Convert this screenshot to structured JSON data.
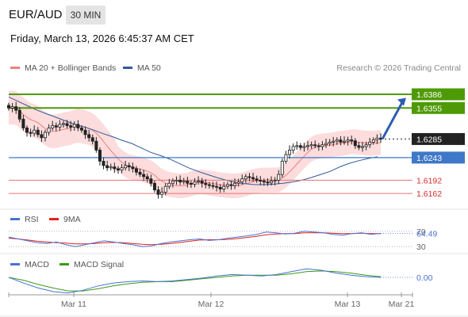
{
  "header": {
    "pair": "EUR/AUD",
    "timeframe": "30 MIN",
    "datetime": "Friday, March 13, 2026 6:45:37 AM CET"
  },
  "legend": {
    "ma20": "MA 20 + Bollinger Bands",
    "ma50": "MA 50",
    "rsi": "RSI",
    "rsi_ma": "9MA",
    "macd": "MACD",
    "macd_signal": "MACD Signal"
  },
  "credit": "Research © 2026 Trading Central",
  "colors": {
    "ma20": "#f08080",
    "ma50": "#2e5a9c",
    "bollinger_fill": "#fbd6d6",
    "target_line": "#4e9a06",
    "current_price": "#222222",
    "support_blue": "#3f78c8",
    "support_red": "#e57373",
    "rsi": "#4a72d1",
    "rsi_ma": "#e32020",
    "macd": "#4a72d1",
    "macd_signal": "#3a9a1a"
  },
  "chart_data": [
    {
      "type": "candlestick",
      "title": "",
      "x_labels": [
        "Mar 11",
        "Mar 12",
        "Mar 13",
        "Mar 21"
      ],
      "levels": [
        {
          "label": "1.6386",
          "value": 1.6386,
          "kind": "target"
        },
        {
          "label": "1.6355",
          "value": 1.6355,
          "kind": "target"
        },
        {
          "label": "1.6285",
          "value": 1.6285,
          "kind": "current"
        },
        {
          "label": "1.6243",
          "value": 1.6243,
          "kind": "support"
        },
        {
          "label": "1.6192",
          "value": 1.6192,
          "kind": "support-red"
        },
        {
          "label": "1.6162",
          "value": 1.6162,
          "kind": "support-red"
        }
      ],
      "ylim": [
        1.613,
        1.642
      ],
      "close": [
        1.6355,
        1.6358,
        1.635,
        1.633,
        1.631,
        1.63,
        1.6298,
        1.6305,
        1.6295,
        1.6288,
        1.63,
        1.631,
        1.6315,
        1.6312,
        1.6318,
        1.632,
        1.6315,
        1.6312,
        1.6318,
        1.631,
        1.6305,
        1.6295,
        1.6288,
        1.628,
        1.626,
        1.6235,
        1.6225,
        1.622,
        1.6222,
        1.6218,
        1.6215,
        1.622,
        1.6225,
        1.6222,
        1.6218,
        1.621,
        1.6205,
        1.62,
        1.6195,
        1.6185,
        1.617,
        1.616,
        1.6165,
        1.6178,
        1.6185,
        1.619,
        1.6192,
        1.6188,
        1.619,
        1.6185,
        1.6183,
        1.6188,
        1.619,
        1.6185,
        1.6182,
        1.618,
        1.6178,
        1.6176,
        1.6172,
        1.6178,
        1.6182,
        1.618,
        1.6185,
        1.6188,
        1.6195,
        1.62,
        1.6198,
        1.6195,
        1.6192,
        1.619,
        1.6188,
        1.6186,
        1.619,
        1.6192,
        1.6205,
        1.6235,
        1.625,
        1.626,
        1.6268,
        1.627,
        1.6266,
        1.6268,
        1.627,
        1.6272,
        1.627,
        1.6268,
        1.6272,
        1.6275,
        1.6278,
        1.628,
        1.6283,
        1.6278,
        1.628,
        1.6283,
        1.6281,
        1.627,
        1.6266,
        1.6268,
        1.6272,
        1.6278,
        1.6283,
        1.6287,
        1.6285
      ],
      "ma50": [
        1.638,
        1.637,
        1.636,
        1.635,
        1.6342,
        1.6334,
        1.6326,
        1.6318,
        1.6312,
        1.6305,
        1.6297,
        1.629,
        1.6282,
        1.6275,
        1.6265,
        1.6255,
        1.6248,
        1.624,
        1.623,
        1.622,
        1.6212,
        1.6205,
        1.6198,
        1.6192,
        1.6187,
        1.6184,
        1.6182,
        1.6182,
        1.6183,
        1.6185,
        1.6188,
        1.6192,
        1.6198,
        1.6205,
        1.6212,
        1.6222,
        1.623,
        1.6236,
        1.6241,
        1.6245
      ],
      "rsi": {
        "current": 64.49,
        "levels": [
          70,
          30
        ],
        "values": [
          55,
          50,
          45,
          40,
          38,
          42,
          35,
          30,
          35,
          40,
          45,
          42,
          38,
          35,
          30,
          32,
          38,
          42,
          45,
          48,
          50,
          46,
          48,
          52,
          55,
          58,
          62,
          68,
          66,
          63,
          65,
          70,
          68,
          66,
          62,
          60,
          64,
          66,
          62,
          64.49
        ],
        "ma": [
          52,
          50,
          47,
          44,
          42,
          40,
          39,
          37,
          37,
          38,
          40,
          41,
          40,
          38,
          36,
          35,
          36,
          38,
          41,
          44,
          47,
          48,
          48,
          49,
          51,
          54,
          57,
          61,
          63,
          64,
          64,
          66,
          66,
          66,
          65,
          64,
          64,
          65,
          64,
          64
        ]
      },
      "macd": {
        "current": 0.0,
        "macd": [
          0,
          -0.0008,
          -0.0015,
          -0.002,
          -0.0022,
          -0.0018,
          -0.0012,
          -0.0008,
          -0.0006,
          -0.0005,
          -0.0006,
          -0.0005,
          -0.0003,
          -0.0001,
          0.0002,
          0.0004,
          0.0003,
          0.0002,
          0.0004,
          0.0008,
          0.0012,
          0.001,
          0.0006,
          0.0003,
          0.0001,
          0
        ],
        "signal": [
          0,
          -0.0004,
          -0.001,
          -0.0015,
          -0.0019,
          -0.0019,
          -0.0016,
          -0.0012,
          -0.0009,
          -0.0007,
          -0.0006,
          -0.0006,
          -0.0004,
          -0.0002,
          0.0,
          0.0002,
          0.0003,
          0.0003,
          0.0003,
          0.0005,
          0.0008,
          0.0009,
          0.0008,
          0.0006,
          0.0003,
          0.0001
        ]
      }
    }
  ]
}
